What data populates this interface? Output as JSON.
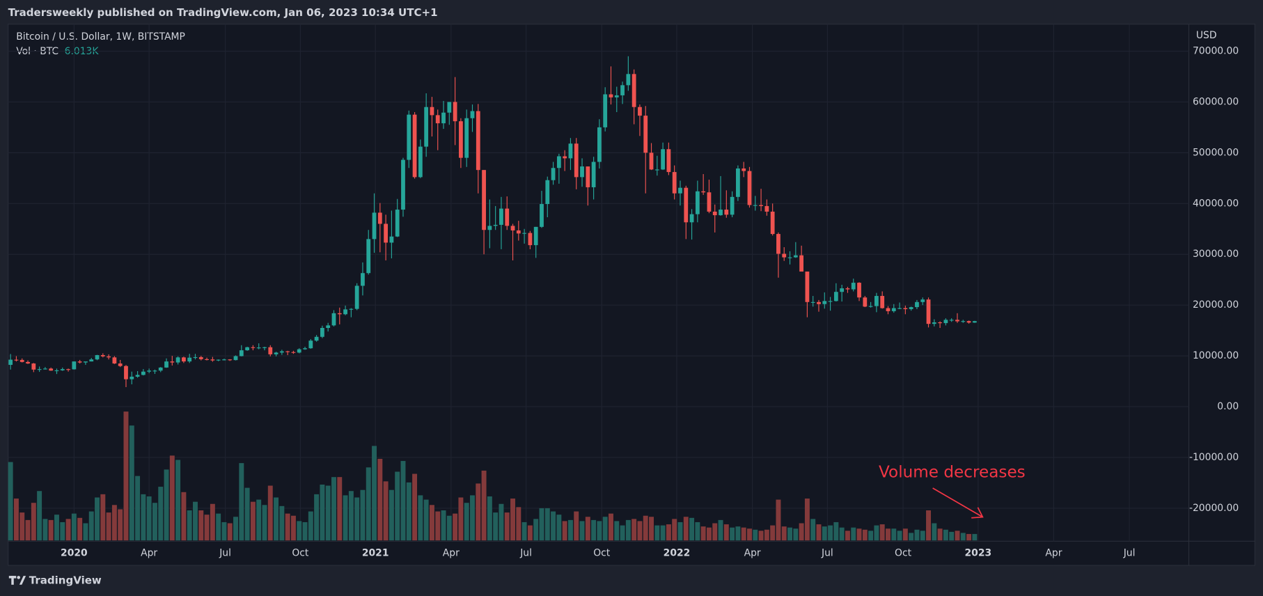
{
  "header": "Tradersweekly published on TradingView.com, Jan 06, 2023 10:34 UTC+1",
  "footer": "TradingView",
  "chart_data": {
    "type": "candlestick",
    "title": "Bitcoin / U.S. Dollar, 1W, BITSTAMP",
    "y_axis_label": "USD",
    "volume_name": "Vol · BTC",
    "volume_last_label": "6.013K",
    "annotation": "Volume decreases",
    "up_color": "#26a69a",
    "down_color": "#ef5350",
    "volume_up_color": "#22605c",
    "volume_down_color": "#843a3b",
    "annotation_color": "#f23645",
    "grid": true,
    "ylim": [
      -26500,
      75000
    ],
    "yticks": [
      {
        "value": -20000,
        "label": "-20000.00"
      },
      {
        "value": -10000,
        "label": "-10000.00"
      },
      {
        "value": 0,
        "label": "0.00"
      },
      {
        "value": 10000,
        "label": "10000.00"
      },
      {
        "value": 20000,
        "label": "20000.00"
      },
      {
        "value": 30000,
        "label": "30000.00"
      },
      {
        "value": 40000,
        "label": "40000.00"
      },
      {
        "value": 50000,
        "label": "50000.00"
      },
      {
        "value": 60000,
        "label": "60000.00"
      },
      {
        "value": 70000,
        "label": "70000.00"
      }
    ],
    "xlim": [
      -0.42,
      204.1
    ],
    "xticks": [
      {
        "value": 11,
        "label": "2020"
      },
      {
        "value": 24,
        "label": "Apr"
      },
      {
        "value": 37.2,
        "label": "Jul"
      },
      {
        "value": 50.2,
        "label": "Oct"
      },
      {
        "value": 63.2,
        "label": "2021"
      },
      {
        "value": 76.3,
        "label": "Apr"
      },
      {
        "value": 89.3,
        "label": "Jul"
      },
      {
        "value": 102.4,
        "label": "Oct"
      },
      {
        "value": 115.4,
        "label": "2022"
      },
      {
        "value": 128.5,
        "label": "Apr"
      },
      {
        "value": 141.5,
        "label": "Jul"
      },
      {
        "value": 154.6,
        "label": "Oct"
      },
      {
        "value": 167.6,
        "label": "2023"
      },
      {
        "value": 180.7,
        "label": "Apr"
      },
      {
        "value": 193.8,
        "label": "Jul"
      }
    ],
    "ohlc": [
      [
        8230,
        10370,
        7300,
        9250
      ],
      [
        9250,
        9950,
        8900,
        9200
      ],
      [
        9200,
        9500,
        8700,
        8800
      ],
      [
        8800,
        9100,
        8400,
        8500
      ],
      [
        8500,
        8600,
        6800,
        7300
      ],
      [
        7300,
        7900,
        6850,
        7400
      ],
      [
        7400,
        7800,
        7300,
        7500
      ],
      [
        7500,
        7700,
        7050,
        7100
      ],
      [
        7100,
        7500,
        6430,
        7150
      ],
      [
        7150,
        7700,
        7050,
        7390
      ],
      [
        7390,
        7500,
        6900,
        7350
      ],
      [
        7350,
        8900,
        7300,
        8900
      ],
      [
        8900,
        9200,
        8500,
        8700
      ],
      [
        8700,
        8800,
        8230,
        8900
      ],
      [
        8900,
        9600,
        8900,
        9300
      ],
      [
        9300,
        10200,
        9150,
        10150
      ],
      [
        10150,
        10500,
        9700,
        9900
      ],
      [
        9900,
        10300,
        9300,
        9700
      ],
      [
        9700,
        9950,
        8400,
        8500
      ],
      [
        8500,
        9200,
        7800,
        8000
      ],
      [
        8000,
        8200,
        3850,
        5400
      ],
      [
        5400,
        6900,
        4400,
        5900
      ],
      [
        5900,
        7000,
        5700,
        6250
      ],
      [
        6250,
        7400,
        6150,
        6900
      ],
      [
        6900,
        7500,
        6600,
        7100
      ],
      [
        7100,
        7300,
        6450,
        7100
      ],
      [
        7100,
        7800,
        6800,
        7700
      ],
      [
        7700,
        9500,
        7650,
        8900
      ],
      [
        8900,
        10000,
        8100,
        8700
      ],
      [
        8700,
        9900,
        8300,
        9700
      ],
      [
        9700,
        9850,
        8600,
        8900
      ],
      [
        8900,
        10400,
        8600,
        9650
      ],
      [
        9650,
        10400,
        9300,
        9750
      ],
      [
        9750,
        10000,
        9100,
        9350
      ],
      [
        9350,
        9650,
        9100,
        9300
      ],
      [
        9300,
        9800,
        8850,
        9100
      ],
      [
        9100,
        9300,
        8950,
        9250
      ],
      [
        9250,
        9450,
        9100,
        9300
      ],
      [
        9300,
        9350,
        9000,
        9170
      ],
      [
        9170,
        10100,
        9100,
        9950
      ],
      [
        9950,
        12100,
        9900,
        11100
      ],
      [
        11100,
        11800,
        11000,
        11700
      ],
      [
        11700,
        12100,
        11100,
        11650
      ],
      [
        11650,
        12470,
        11300,
        11650
      ],
      [
        11650,
        11800,
        11100,
        11700
      ],
      [
        11700,
        12100,
        9900,
        10300
      ],
      [
        10300,
        10800,
        9900,
        10650
      ],
      [
        10650,
        11200,
        10200,
        10900
      ],
      [
        10900,
        11000,
        10150,
        10750
      ],
      [
        10750,
        11000,
        10400,
        10650
      ],
      [
        10650,
        11500,
        10500,
        11300
      ],
      [
        11300,
        11800,
        11200,
        11500
      ],
      [
        11500,
        13300,
        11400,
        13000
      ],
      [
        13000,
        14100,
        12800,
        13750
      ],
      [
        13750,
        15950,
        13500,
        15500
      ],
      [
        15500,
        16500,
        14800,
        16000
      ],
      [
        16000,
        19000,
        15800,
        18400
      ],
      [
        18400,
        19500,
        16200,
        18200
      ],
      [
        18200,
        19900,
        18000,
        19150
      ],
      [
        19150,
        19400,
        17600,
        19250
      ],
      [
        19250,
        24300,
        19000,
        23800
      ],
      [
        23800,
        28400,
        21900,
        26300
      ],
      [
        26300,
        34800,
        26000,
        33000
      ],
      [
        33000,
        42000,
        30300,
        38200
      ],
      [
        38200,
        40100,
        30400,
        36000
      ],
      [
        36000,
        37800,
        28800,
        32300
      ],
      [
        32300,
        38600,
        29200,
        33500
      ],
      [
        33500,
        40900,
        33400,
        38800
      ],
      [
        38800,
        49000,
        37400,
        48600
      ],
      [
        48600,
        58300,
        47000,
        57500
      ],
      [
        57500,
        58000,
        44900,
        45200
      ],
      [
        45200,
        52600,
        45000,
        51200
      ],
      [
        51200,
        61700,
        49200,
        59000
      ],
      [
        59000,
        61000,
        53200,
        57400
      ],
      [
        57400,
        58500,
        50500,
        55800
      ],
      [
        55800,
        60200,
        54700,
        57900
      ],
      [
        57900,
        60000,
        55500,
        60000
      ],
      [
        60000,
        64900,
        51500,
        56200
      ],
      [
        56200,
        56800,
        47000,
        49000
      ],
      [
        49000,
        58500,
        47200,
        56800
      ],
      [
        56800,
        59500,
        54100,
        58200
      ],
      [
        58200,
        59600,
        42000,
        46600
      ],
      [
        46600,
        46600,
        30000,
        34800
      ],
      [
        34800,
        40800,
        31200,
        35600
      ],
      [
        35600,
        39500,
        34800,
        35800
      ],
      [
        35800,
        41300,
        31000,
        39000
      ],
      [
        39000,
        41400,
        34800,
        35600
      ],
      [
        35600,
        36000,
        28800,
        34700
      ],
      [
        34700,
        36600,
        32700,
        34100
      ],
      [
        34100,
        35000,
        32100,
        34200
      ],
      [
        34200,
        34600,
        31000,
        31800
      ],
      [
        31800,
        35400,
        29300,
        35400
      ],
      [
        35400,
        42500,
        35200,
        39900
      ],
      [
        39900,
        45300,
        37300,
        44600
      ],
      [
        44600,
        48200,
        43700,
        47000
      ],
      [
        47000,
        49800,
        43900,
        49300
      ],
      [
        49300,
        50500,
        46400,
        48900
      ],
      [
        48900,
        52900,
        46600,
        51800
      ],
      [
        51800,
        52900,
        42800,
        45200
      ],
      [
        45200,
        48900,
        43300,
        47300
      ],
      [
        47300,
        47300,
        39600,
        43200
      ],
      [
        43200,
        49200,
        40800,
        48200
      ],
      [
        48200,
        56600,
        46900,
        55000
      ],
      [
        55000,
        62900,
        54200,
        61500
      ],
      [
        61500,
        67000,
        59500,
        60900
      ],
      [
        60900,
        63000,
        58000,
        61300
      ],
      [
        61300,
        64000,
        59600,
        63300
      ],
      [
        63300,
        69000,
        62200,
        65500
      ],
      [
        65500,
        66400,
        55600,
        59000
      ],
      [
        59000,
        59500,
        53300,
        57300
      ],
      [
        57300,
        59200,
        42000,
        50000
      ],
      [
        50000,
        51900,
        46600,
        46700
      ],
      [
        46700,
        49400,
        45500,
        46700
      ],
      [
        46700,
        52000,
        46600,
        50700
      ],
      [
        50700,
        52000,
        45600,
        46200
      ],
      [
        46200,
        47500,
        40800,
        42000
      ],
      [
        42000,
        44500,
        39600,
        43100
      ],
      [
        43100,
        43500,
        33000,
        36300
      ],
      [
        36300,
        38900,
        32900,
        37900
      ],
      [
        37900,
        44500,
        36300,
        42400
      ],
      [
        42400,
        45800,
        41700,
        42200
      ],
      [
        42200,
        44700,
        38100,
        38400
      ],
      [
        38400,
        39800,
        34300,
        37700
      ],
      [
        37700,
        45400,
        37600,
        38800
      ],
      [
        38800,
        42600,
        37200,
        37800
      ],
      [
        37800,
        42400,
        37300,
        41300
      ],
      [
        41300,
        47500,
        40500,
        46900
      ],
      [
        46900,
        48200,
        45200,
        46400
      ],
      [
        46400,
        47200,
        39200,
        39700
      ],
      [
        39700,
        41500,
        38600,
        39700
      ],
      [
        39700,
        42900,
        38500,
        39500
      ],
      [
        39500,
        40800,
        37600,
        38400
      ],
      [
        38400,
        40000,
        33700,
        34000
      ],
      [
        34000,
        34300,
        25400,
        30100
      ],
      [
        30100,
        31400,
        28700,
        29400
      ],
      [
        29400,
        30600,
        28000,
        29400
      ],
      [
        29400,
        32400,
        29300,
        29800
      ],
      [
        29800,
        31700,
        26600,
        26600
      ],
      [
        26600,
        26600,
        17600,
        20600
      ],
      [
        20600,
        21800,
        19700,
        20600
      ],
      [
        20600,
        21000,
        18700,
        20200
      ],
      [
        20200,
        22500,
        19300,
        20800
      ],
      [
        20800,
        21600,
        18900,
        20800
      ],
      [
        20800,
        24300,
        20700,
        22600
      ],
      [
        22600,
        24000,
        20700,
        23300
      ],
      [
        23300,
        23600,
        22400,
        23100
      ],
      [
        23100,
        25200,
        22700,
        24400
      ],
      [
        24400,
        24500,
        20800,
        21500
      ],
      [
        21500,
        21800,
        19600,
        19700
      ],
      [
        19700,
        20600,
        19500,
        19800
      ],
      [
        19800,
        22400,
        18600,
        21800
      ],
      [
        21800,
        22700,
        19300,
        19400
      ],
      [
        19400,
        19800,
        18200,
        18800
      ],
      [
        18800,
        20200,
        18500,
        19400
      ],
      [
        19400,
        20500,
        19200,
        19400
      ],
      [
        19400,
        19900,
        18200,
        19200
      ],
      [
        19200,
        19700,
        18900,
        19600
      ],
      [
        19600,
        21000,
        19200,
        20600
      ],
      [
        20600,
        21500,
        20000,
        21100
      ],
      [
        21100,
        21500,
        15600,
        16300
      ],
      [
        16300,
        17200,
        15800,
        16600
      ],
      [
        16600,
        16800,
        15500,
        16450
      ],
      [
        16450,
        17400,
        16000,
        17100
      ],
      [
        17100,
        17400,
        16700,
        17100
      ],
      [
        17100,
        18400,
        16500,
        16800
      ],
      [
        16800,
        17100,
        16500,
        16850
      ],
      [
        16850,
        16950,
        16350,
        16550
      ],
      [
        16550,
        16900,
        16500,
        16850
      ]
    ],
    "volume": [
      73000,
      39000,
      26000,
      19000,
      35000,
      46000,
      20000,
      19000,
      24000,
      17000,
      20000,
      25000,
      21000,
      16000,
      27000,
      40000,
      43000,
      26000,
      33000,
      29000,
      120000,
      107000,
      60000,
      43000,
      41000,
      35000,
      50000,
      66000,
      79000,
      75000,
      45000,
      28000,
      36000,
      28000,
      24000,
      34000,
      25000,
      17000,
      16000,
      22000,
      72000,
      49000,
      36000,
      38000,
      33000,
      51000,
      40000,
      32000,
      25000,
      23000,
      18000,
      17000,
      27000,
      43000,
      52000,
      51000,
      59000,
      59000,
      42000,
      46000,
      40000,
      47000,
      68000,
      88000,
      76000,
      55000,
      47000,
      64000,
      74000,
      54000,
      62000,
      42000,
      38000,
      33000,
      27000,
      28000,
      23000,
      25000,
      40000,
      35000,
      42000,
      53000,
      65000,
      41000,
      26000,
      34000,
      26000,
      39000,
      31000,
      17000,
      14000,
      20000,
      30000,
      30000,
      27000,
      24000,
      18000,
      19000,
      27000,
      18000,
      22000,
      19000,
      18000,
      22000,
      25000,
      18000,
      14000,
      19000,
      20000,
      18000,
      23000,
      22000,
      14000,
      14000,
      15000,
      20000,
      17000,
      22000,
      21000,
      17000,
      13000,
      12000,
      16000,
      19000,
      15000,
      12000,
      13000,
      12000,
      11000,
      10000,
      9000,
      10000,
      14000,
      38000,
      13000,
      12000,
      11000,
      16000,
      39000,
      20000,
      15000,
      13000,
      14000,
      17000,
      12000,
      9000,
      12000,
      11000,
      10000,
      9000,
      14000,
      15000,
      11000,
      11000,
      9000,
      11000,
      7000,
      10000,
      9000,
      28000,
      16000,
      11000,
      10000,
      8000,
      9000,
      7000,
      6000,
      6013
    ]
  }
}
